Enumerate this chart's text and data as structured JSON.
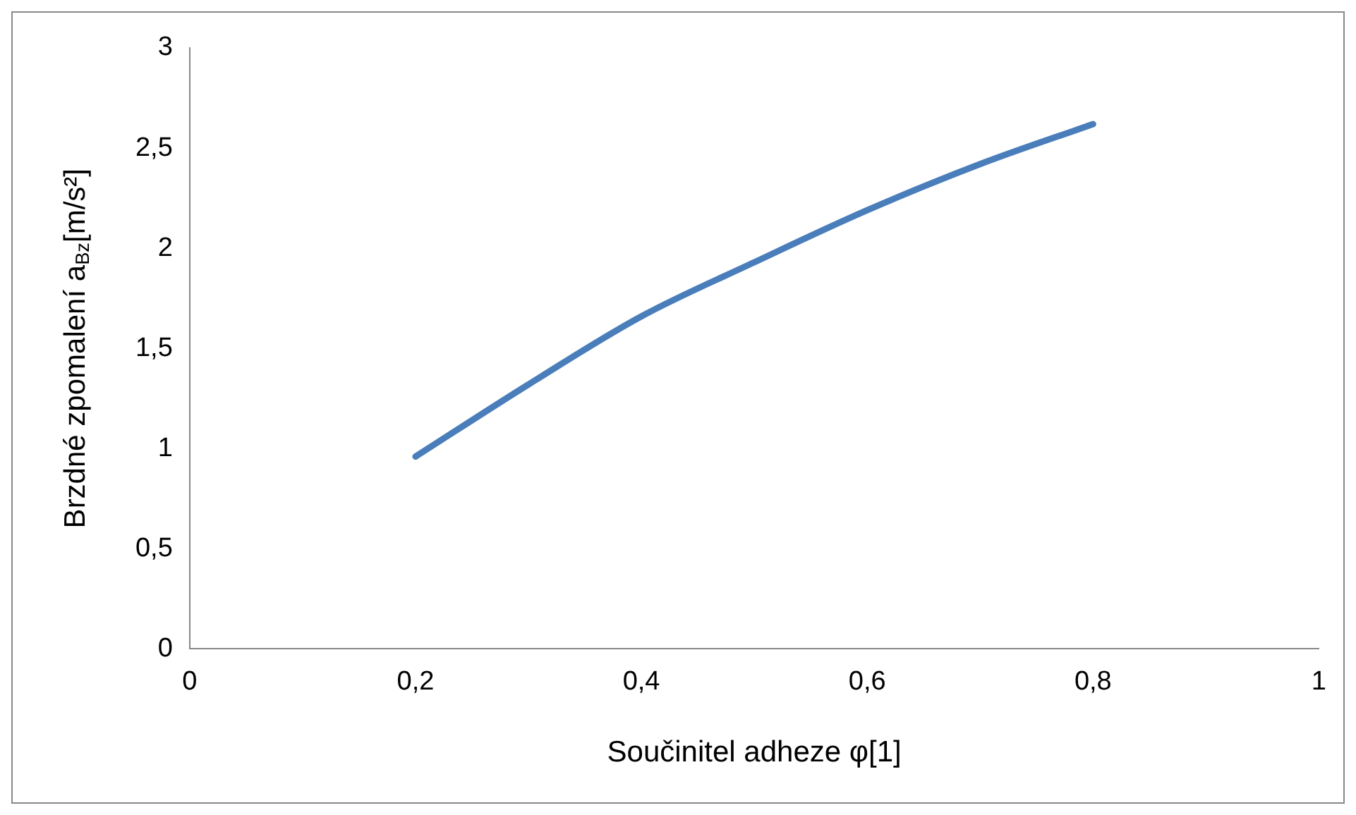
{
  "chart_data": {
    "type": "line",
    "xlabel": "Součinitel adheze φ[1]",
    "ylabel": "Brzdné zpomalení a$_{Bz}$[m/s²]",
    "x": [
      0.2,
      0.3,
      0.4,
      0.5,
      0.6,
      0.7,
      0.8
    ],
    "series": [
      {
        "color": "#4a7ebb",
        "values": [
          0.96,
          1.32,
          1.66,
          1.93,
          2.19,
          2.42,
          2.62
        ]
      }
    ],
    "xlim": [
      0,
      1
    ],
    "xticks": [
      0,
      {
        "value": 0.2,
        "label": "0,2"
      },
      {
        "value": 0.4,
        "label": "0,4"
      },
      {
        "value": 0.6,
        "label": "0,6"
      },
      {
        "value": 0.8,
        "label": "0,8"
      },
      1
    ],
    "ylim": [
      0,
      3
    ],
    "yticks": [
      0,
      {
        "value": 0.5,
        "label": "0,5"
      },
      1,
      {
        "value": 1.5,
        "label": "1,5"
      },
      2,
      {
        "value": 2.5,
        "label": "2,5"
      },
      3
    ],
    "grid": false,
    "legend": false,
    "marker": "none",
    "line_style": "solid"
  }
}
